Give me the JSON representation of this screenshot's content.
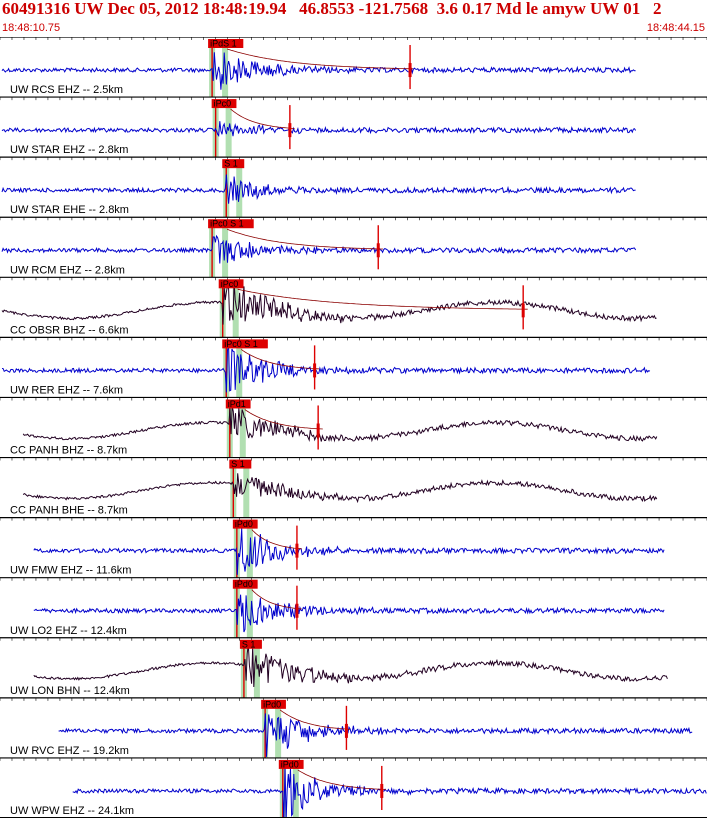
{
  "header": {
    "title": "60491316 UW Dec 05, 2012 18:48:19.94   46.8553 -121.7568  3.6 0.17 Md le amyw UW 01   2",
    "start_time": "18:48:10.75",
    "end_time": "18:48:44.15"
  },
  "colors": {
    "trace_blue": "#0000cc",
    "trace_dark": "#220022",
    "pick": "#dd0000",
    "window": "#a8dca8",
    "title": "#cc0000"
  },
  "channels": [
    {
      "label": "UW RCS EHZ -- 2.5km",
      "pick_label": "iPdS 1",
      "color": "trace_blue",
      "start": 0.0,
      "end": 0.9,
      "p": 0.3,
      "s": 0.58,
      "amp": 0.35
    },
    {
      "label": "UW STAR EHZ -- 2.8km",
      "pick_label": "iPc0",
      "color": "trace_blue",
      "start": 0.0,
      "end": 0.9,
      "p": 0.305,
      "s": 0.41,
      "amp": 0.12
    },
    {
      "label": "UW STAR EHE -- 2.8km",
      "pick_label": "S 1",
      "color": "trace_blue",
      "start": 0.0,
      "end": 0.9,
      "p": 0.32,
      "s": null,
      "amp": 0.2
    },
    {
      "label": "UW RCM EHZ -- 2.8km",
      "pick_label": "iPc0 S 1",
      "color": "trace_blue",
      "start": 0.0,
      "end": 0.9,
      "p": 0.3,
      "s": 0.535,
      "amp": 0.25
    },
    {
      "label": "CC OBSR BHZ -- 6.6km",
      "pick_label": "iPc0",
      "color": "trace_dark",
      "start": 0.0,
      "end": 0.93,
      "p": 0.315,
      "s": 0.74,
      "amp": 0.35
    },
    {
      "label": "UW RER EHZ -- 7.6km",
      "pick_label": "iPc0 S 1",
      "color": "trace_blue",
      "start": 0.0,
      "end": 0.92,
      "p": 0.32,
      "s": 0.445,
      "amp": 0.4
    },
    {
      "label": "CC PANH BHZ -- 8.7km",
      "pick_label": "iPd1",
      "color": "trace_dark",
      "start": 0.03,
      "end": 0.93,
      "p": 0.325,
      "s": 0.45,
      "amp": 0.25
    },
    {
      "label": "CC PANH BHE -- 8.7km",
      "pick_label": "S 1",
      "color": "trace_dark",
      "start": 0.03,
      "end": 0.93,
      "p": 0.33,
      "s": null,
      "amp": 0.2
    },
    {
      "label": "UW FMW EHZ -- 11.6km",
      "pick_label": "iPd0",
      "color": "trace_blue",
      "start": 0.045,
      "end": 0.94,
      "p": 0.335,
      "s": 0.42,
      "amp": 0.4
    },
    {
      "label": "UW LO2 EHZ -- 12.4km",
      "pick_label": "iPd0",
      "color": "trace_blue",
      "start": 0.045,
      "end": 0.94,
      "p": 0.335,
      "s": 0.42,
      "amp": 0.35
    },
    {
      "label": "UW LON BHN -- 12.4km",
      "pick_label": "S 1",
      "color": "trace_dark",
      "start": 0.045,
      "end": 0.945,
      "p": 0.345,
      "s": null,
      "amp": 0.35
    },
    {
      "label": "UW RVC EHZ -- 19.2km",
      "pick_label": "iPd0",
      "color": "trace_blue",
      "start": 0.08,
      "end": 0.98,
      "p": 0.375,
      "s": 0.49,
      "amp": 0.4
    },
    {
      "label": "UW WPW EHZ -- 24.1km",
      "pick_label": "iPd0",
      "color": "trace_blue",
      "start": 0.1,
      "end": 1.0,
      "p": 0.4,
      "s": 0.54,
      "amp": 0.45
    }
  ]
}
